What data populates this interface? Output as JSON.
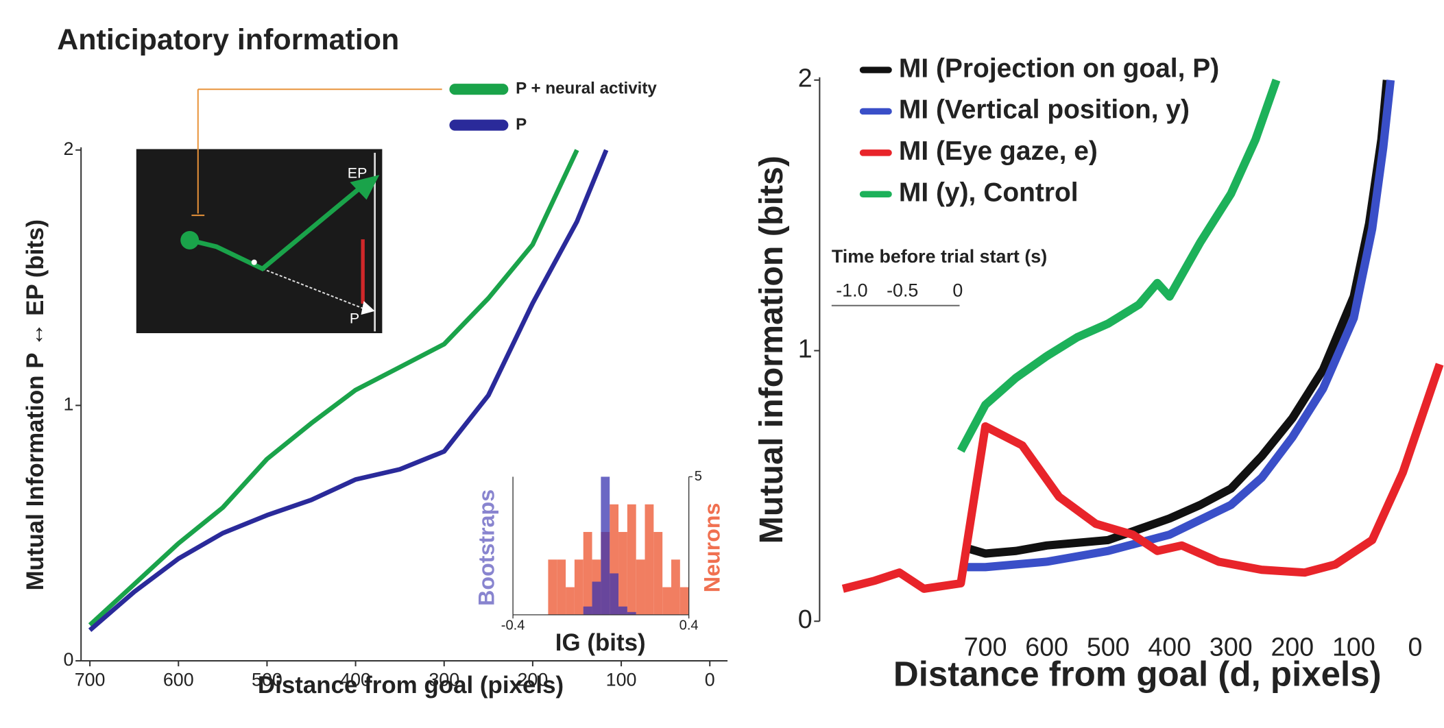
{
  "chart_data": [
    {
      "type": "line",
      "title": "Anticipatory information",
      "xlabel": "Distance from goal (pixels)",
      "ylabel": "Mutual Information P ↔ EP (bits)",
      "xlim": [
        710,
        -20
      ],
      "xticks": [
        700,
        600,
        500,
        400,
        300,
        200,
        100,
        0
      ],
      "ylim": [
        0,
        2
      ],
      "yticks": [
        0,
        1,
        2
      ],
      "inset_labels": [
        "EP",
        "P"
      ],
      "series": [
        {
          "name": "P + neural activity",
          "color": "#1aa34a",
          "x": [
            700,
            650,
            600,
            550,
            500,
            450,
            400,
            350,
            300,
            250,
            200,
            150
          ],
          "values": [
            0.14,
            0.3,
            0.46,
            0.6,
            0.79,
            0.93,
            1.06,
            1.15,
            1.24,
            1.42,
            1.63,
            2.0
          ]
        },
        {
          "name": "P",
          "color": "#2a2a9a",
          "x": [
            700,
            650,
            600,
            550,
            500,
            450,
            400,
            350,
            300,
            250,
            200,
            150,
            117
          ],
          "values": [
            0.12,
            0.27,
            0.4,
            0.5,
            0.57,
            0.63,
            0.71,
            0.75,
            0.82,
            1.04,
            1.4,
            1.72,
            2.0
          ]
        }
      ]
    },
    {
      "type": "histogram",
      "xlabel": "IG (bits)",
      "bins": [
        -0.4,
        -0.36,
        -0.32,
        -0.28,
        -0.24,
        -0.2,
        -0.16,
        -0.12,
        -0.08,
        -0.04,
        0,
        0.04,
        0.08,
        0.12,
        0.16,
        0.2,
        0.24,
        0.28,
        0.32,
        0.36,
        0.4
      ],
      "xticks": [
        -0.4,
        0.4
      ],
      "ylim": [
        0,
        5
      ],
      "y2ticks": [
        5
      ],
      "series": [
        {
          "name": "Neurons",
          "color": "#f07050",
          "values": [
            0,
            0,
            0,
            0,
            2,
            2,
            1,
            2,
            3,
            2,
            3,
            4,
            3,
            4,
            2,
            4,
            3,
            1,
            2,
            1
          ]
        },
        {
          "name": "Bootstraps",
          "color": "#3a34b0",
          "values": [
            0,
            0,
            0,
            0,
            0,
            0,
            0,
            0,
            0.3,
            1.2,
            5,
            1.5,
            0.3,
            0.1,
            0,
            0,
            0,
            0,
            0,
            0
          ]
        }
      ]
    },
    {
      "type": "line",
      "xlabel": "Distance from goal (d, pixels)",
      "ylabel": "Mutual information (bits)",
      "xlim": [
        970,
        -47
      ],
      "xticks": [
        700,
        600,
        500,
        400,
        300,
        200,
        100,
        0
      ],
      "ylim": [
        0,
        2
      ],
      "yticks": [
        0,
        1,
        2
      ],
      "annotations": [
        "Time before trial start (s)",
        "-1.0",
        "-0.5",
        "0"
      ],
      "series": [
        {
          "name": "MI (Projection on goal, P)",
          "color": "#111111",
          "x": [
            730,
            700,
            650,
            600,
            500,
            450,
            400,
            350,
            300,
            250,
            200,
            150,
            100,
            75,
            55,
            46
          ],
          "values": [
            0.27,
            0.25,
            0.26,
            0.28,
            0.3,
            0.34,
            0.38,
            0.43,
            0.49,
            0.61,
            0.75,
            0.93,
            1.2,
            1.47,
            1.78,
            2.0
          ]
        },
        {
          "name": "MI (Vertical position, y)",
          "color": "#3a4fc8",
          "x": [
            730,
            700,
            600,
            500,
            400,
            300,
            250,
            200,
            150,
            100,
            70,
            52,
            40
          ],
          "values": [
            0.2,
            0.2,
            0.22,
            0.26,
            0.32,
            0.43,
            0.53,
            0.68,
            0.86,
            1.12,
            1.45,
            1.75,
            2.0
          ]
        },
        {
          "name": "MI (Eye gaze, e)",
          "color": "#e8242a",
          "x": [
            932,
            880,
            840,
            800,
            740,
            700,
            640,
            580,
            520,
            460,
            420,
            380,
            320,
            250,
            180,
            130,
            70,
            20,
            -40
          ],
          "values": [
            0.12,
            0.15,
            0.18,
            0.12,
            0.14,
            0.72,
            0.65,
            0.46,
            0.36,
            0.32,
            0.26,
            0.28,
            0.22,
            0.19,
            0.18,
            0.21,
            0.3,
            0.55,
            0.95
          ]
        },
        {
          "name": "MI (y), Control",
          "color": "#1db15a",
          "x": [
            740,
            700,
            650,
            600,
            550,
            500,
            450,
            420,
            400,
            350,
            300,
            260,
            226
          ],
          "values": [
            0.63,
            0.8,
            0.9,
            0.98,
            1.05,
            1.1,
            1.17,
            1.25,
            1.2,
            1.4,
            1.58,
            1.78,
            2.0
          ]
        }
      ]
    }
  ]
}
